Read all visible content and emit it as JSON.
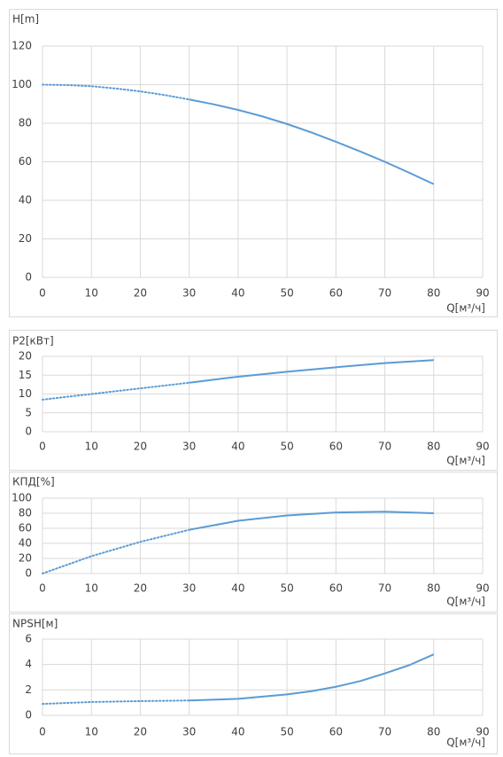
{
  "chart_data": [
    {
      "type": "line",
      "title": "H[m]",
      "x_label": "Q[м³/ч]",
      "x": [
        0,
        5,
        10,
        15,
        20,
        25,
        30,
        35,
        40,
        45,
        50,
        55,
        60,
        65,
        70,
        75,
        80
      ],
      "values": [
        100,
        99.8,
        99.2,
        98,
        96.5,
        94.6,
        92.3,
        89.8,
        86.9,
        83.5,
        79.6,
        75.2,
        70.4,
        65.3,
        60,
        54.3,
        48.4
      ],
      "color": "#5b9bd5",
      "dotted_until": 30,
      "xlim": [
        0,
        90
      ],
      "xticks": [
        0,
        10,
        20,
        30,
        40,
        50,
        60,
        70,
        80,
        90
      ],
      "ylim": [
        0,
        120
      ],
      "yticks": [
        0,
        20,
        40,
        60,
        80,
        100,
        120
      ],
      "grid": true
    },
    {
      "type": "line",
      "title": "P2[кВт]",
      "x_label": "Q[м³/ч]",
      "x": [
        0,
        10,
        20,
        30,
        40,
        50,
        60,
        70,
        80
      ],
      "values": [
        8.5,
        10,
        11.5,
        13,
        14.6,
        15.9,
        17.1,
        18.2,
        19
      ],
      "color": "#5b9bd5",
      "dotted_until": 30,
      "xlim": [
        0,
        90
      ],
      "xticks": [
        0,
        10,
        20,
        30,
        40,
        50,
        60,
        70,
        80,
        90
      ],
      "ylim": [
        0,
        20
      ],
      "yticks": [
        0,
        5,
        10,
        15,
        20
      ],
      "grid": true
    },
    {
      "type": "line",
      "title": "КПД[%]",
      "x_label": "Q[м³/ч]",
      "x": [
        0,
        10,
        20,
        30,
        40,
        50,
        60,
        70,
        80
      ],
      "values": [
        0,
        23,
        42,
        58,
        70,
        77,
        81,
        82,
        80
      ],
      "color": "#5b9bd5",
      "dotted_until": 30,
      "xlim": [
        0,
        90
      ],
      "xticks": [
        0,
        10,
        20,
        30,
        40,
        50,
        60,
        70,
        80,
        90
      ],
      "ylim": [
        0,
        100
      ],
      "yticks": [
        0,
        20,
        40,
        60,
        80,
        100
      ],
      "grid": true
    },
    {
      "type": "line",
      "title": "NPSH[м]",
      "x_label": "Q[м³/ч]",
      "x": [
        0,
        10,
        20,
        30,
        40,
        50,
        55,
        60,
        65,
        70,
        75,
        80
      ],
      "values": [
        0.9,
        1.05,
        1.12,
        1.17,
        1.3,
        1.65,
        1.9,
        2.25,
        2.7,
        3.3,
        3.95,
        4.8
      ],
      "color": "#5b9bd5",
      "dotted_until": 30,
      "xlim": [
        0,
        90
      ],
      "xticks": [
        0,
        10,
        20,
        30,
        40,
        50,
        60,
        70,
        80,
        90
      ],
      "ylim": [
        0,
        6
      ],
      "yticks": [
        0,
        2,
        4,
        6
      ],
      "grid": true
    }
  ]
}
